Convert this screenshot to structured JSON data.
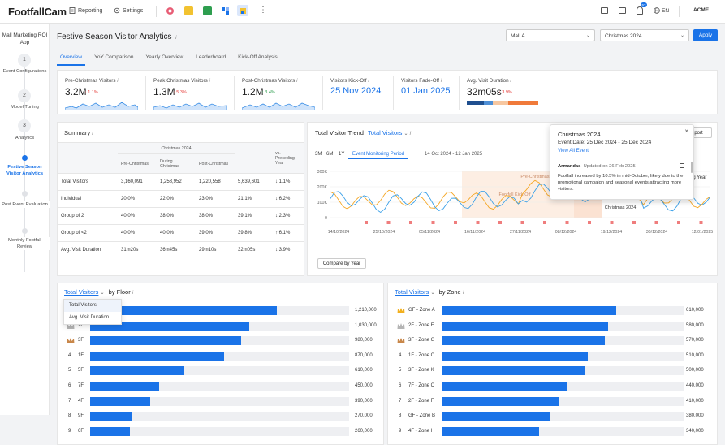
{
  "app": {
    "logo": "FootfallCam",
    "nav": [
      {
        "label": "Reporting",
        "icon": "document-icon"
      },
      {
        "label": "Settings",
        "icon": "gear-icon"
      }
    ],
    "notification_count": "52",
    "language": "EN",
    "account": "ACME"
  },
  "sidebar": {
    "title": "Mall Marketing ROI App",
    "steps": [
      {
        "num": "1",
        "label": "Event Configurations"
      },
      {
        "num": "2",
        "label": "Model Tuning"
      },
      {
        "num": "3",
        "label": "Analytics"
      },
      {
        "num": "",
        "label": "Festive Season Visitor Analytics",
        "active": true
      },
      {
        "num": "",
        "label": "Post Event Evaluation"
      },
      {
        "num": "",
        "label": "Monthly Footfall Review"
      }
    ]
  },
  "page": {
    "title": "Festive Season Visitor Analytics",
    "mall_select": "Mall A",
    "period_select": "Christmas 2024",
    "apply_label": "Apply",
    "tabs": [
      "Overview",
      "YoY Comparison",
      "Yearly Overview",
      "Leaderboard",
      "Kick-Off Analysis"
    ],
    "active_tab": "Overview"
  },
  "kpis": [
    {
      "label": "Pre-Christmas Visitors",
      "value": "3.2M",
      "delta": "1.1%",
      "dir": "down"
    },
    {
      "label": "Peak Christmas Visitors",
      "value": "1.3M",
      "delta": "5.3%",
      "dir": "down"
    },
    {
      "label": "Post-Christmas Visitors",
      "value": "1.2M",
      "delta": "3.4%",
      "dir": "up"
    },
    {
      "label": "Visitors Kick-Off",
      "value": "25 Nov 2024"
    },
    {
      "label": "Visitors Fade-Off",
      "value": "01 Jan 2025"
    },
    {
      "label": "Avg. Visit Duration",
      "value": "32m05s",
      "delta": "3.9%",
      "dir": "down"
    }
  ],
  "summary": {
    "title": "Summary",
    "group_header": "Christmas 2024",
    "columns": [
      "Pre-Christmas",
      "During Christmas",
      "Post-Christmas",
      "Total",
      "vs. Preceding Year"
    ],
    "rows": [
      {
        "label": "Total Visitors",
        "cells": [
          "3,160,091",
          "1,258,952",
          "1,220,558",
          "5,639,601"
        ],
        "delta": "1.1%",
        "dir": "down"
      },
      {
        "label": "Individual",
        "cells": [
          "20.0%",
          "22.0%",
          "23.0%",
          "21.1%"
        ],
        "delta": "6.2%",
        "dir": "down"
      },
      {
        "label": "Group of 2",
        "cells": [
          "40.0%",
          "38.0%",
          "38.0%",
          "39.1%"
        ],
        "delta": "2.3%",
        "dir": "down"
      },
      {
        "label": "Group of <2",
        "cells": [
          "40.0%",
          "40.0%",
          "39.0%",
          "39.8%"
        ],
        "delta": "6.1%",
        "dir": "up"
      },
      {
        "label": "Avg. Visit Duration",
        "cells": [
          "31m20s",
          "36m45s",
          "29m10s",
          "32m05s"
        ],
        "delta": "3.9%",
        "dir": "down"
      }
    ]
  },
  "trend": {
    "title": "Total Visitor Trend",
    "metric": "Total Visitors",
    "ranges": [
      "3M",
      "6M",
      "1Y",
      "Event Monitoring Period"
    ],
    "date_range": "14 Oct 2024 - 12 Jan 2025",
    "export_label": "Export",
    "compare_label": "Compare by Year",
    "compare_partial": "ng Year",
    "y_ticks": [
      "300K",
      "200K",
      "100K",
      "0"
    ],
    "x_ticks": [
      "14/10/2024",
      "25/10/2024",
      "05/11/2024",
      "16/11/2024",
      "27/11/2024",
      "08/12/2024",
      "19/12/2024",
      "30/12/2024",
      "12/01/2025"
    ],
    "annotations": [
      "Pre-Christmas",
      "Footfall Kick-Off",
      "Christmas 2024"
    ],
    "series_colors": {
      "current": "#3aa0e8",
      "previous": "#f5a623"
    }
  },
  "popup": {
    "title": "Christmas 2024",
    "event_date": "Event Date: 25 Dec 2024 - 25 Dec 2024",
    "view_all": "View All Event",
    "author": "Armandas",
    "updated": "Updated on 26 Feb 2025",
    "note": "Footfall increased by 10.5% in mid-October, likely due to the promotional campaign and seasonal events attracting more visitors."
  },
  "floor": {
    "metric": "Total Visitors",
    "suffix": "by Floor",
    "dropdown": [
      "Total Visitors",
      "Avg. Visit Duration"
    ],
    "max": 1210000,
    "rows": [
      {
        "label": "",
        "value": 1210000,
        "display": "1,210,000",
        "medal": "gold"
      },
      {
        "label": "2F",
        "value": 1030000,
        "display": "1,030,000",
        "medal": "silver"
      },
      {
        "label": "3F",
        "value": 980000,
        "display": "980,000",
        "medal": "bronze"
      },
      {
        "label": "1F",
        "value": 870000,
        "display": "870,000",
        "rank": "4"
      },
      {
        "label": "5F",
        "value": 610000,
        "display": "610,000",
        "rank": "5"
      },
      {
        "label": "7F",
        "value": 450000,
        "display": "450,000",
        "rank": "6"
      },
      {
        "label": "4F",
        "value": 390000,
        "display": "390,000",
        "rank": "7"
      },
      {
        "label": "9F",
        "value": 270000,
        "display": "270,000",
        "rank": "8"
      },
      {
        "label": "6F",
        "value": 260000,
        "display": "260,000",
        "rank": "9"
      }
    ]
  },
  "zone": {
    "metric": "Total Visitors",
    "suffix": "by Zone",
    "max": 610000,
    "rows": [
      {
        "label": "GF - Zone A",
        "value": 610000,
        "display": "610,000",
        "medal": "gold"
      },
      {
        "label": "2F - Zone E",
        "value": 580000,
        "display": "580,000",
        "medal": "silver"
      },
      {
        "label": "3F - Zone G",
        "value": 570000,
        "display": "570,000",
        "medal": "bronze"
      },
      {
        "label": "1F - Zone C",
        "value": 510000,
        "display": "510,000",
        "rank": "4"
      },
      {
        "label": "3F - Zone K",
        "value": 500000,
        "display": "500,000",
        "rank": "5"
      },
      {
        "label": "7F - Zone O",
        "value": 440000,
        "display": "440,000",
        "rank": "6"
      },
      {
        "label": "2F - Zone F",
        "value": 410000,
        "display": "410,000",
        "rank": "7"
      },
      {
        "label": "GF - Zone B",
        "value": 380000,
        "display": "380,000",
        "rank": "8"
      },
      {
        "label": "4F - Zone I",
        "value": 340000,
        "display": "340,000",
        "rank": "9"
      }
    ]
  }
}
